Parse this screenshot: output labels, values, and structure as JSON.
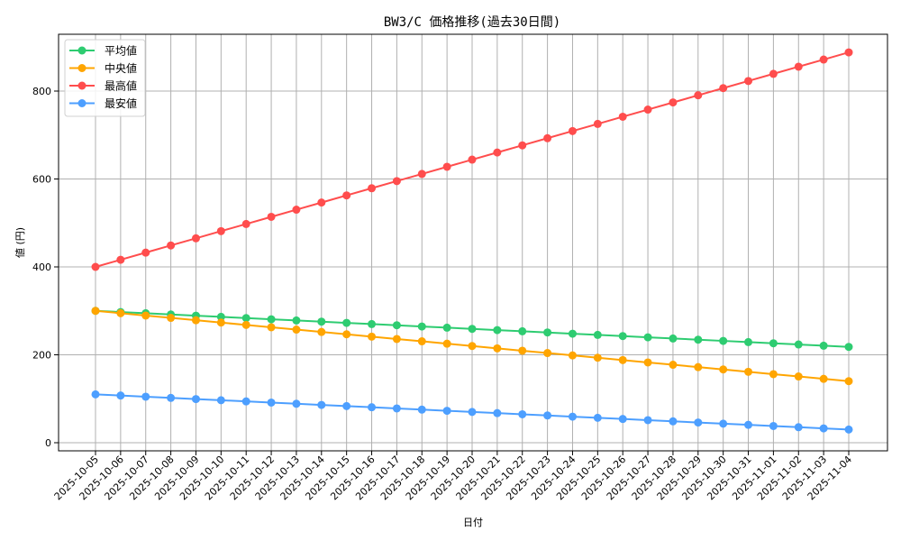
{
  "chart_data": {
    "type": "line",
    "title": "BW3/C 価格推移(過去30日間)",
    "xlabel": "日付",
    "ylabel": "値 (円)",
    "ylim": [
      -20,
      925
    ],
    "yticks": [
      0,
      200,
      400,
      600,
      800
    ],
    "grid": true,
    "legend_position": "upper left",
    "x": [
      "2025-10-05",
      "2025-10-06",
      "2025-10-07",
      "2025-10-08",
      "2025-10-09",
      "2025-10-10",
      "2025-10-11",
      "2025-10-12",
      "2025-10-13",
      "2025-10-14",
      "2025-10-15",
      "2025-10-16",
      "2025-10-17",
      "2025-10-18",
      "2025-10-19",
      "2025-10-20",
      "2025-10-21",
      "2025-10-22",
      "2025-10-23",
      "2025-10-24",
      "2025-10-25",
      "2025-10-26",
      "2025-10-27",
      "2025-10-28",
      "2025-10-29",
      "2025-10-30",
      "2025-10-31",
      "2025-11-01",
      "2025-11-02",
      "2025-11-03",
      "2025-11-04"
    ],
    "series": [
      {
        "name": "平均値",
        "color": "#2ecc71",
        "start": 300,
        "end": 218
      },
      {
        "name": "中央値",
        "color": "#ffa500",
        "start": 300,
        "end": 140
      },
      {
        "name": "最高値",
        "color": "#ff4d4d",
        "start": 400,
        "end": 888
      },
      {
        "name": "最安値",
        "color": "#4d9fff",
        "start": 110,
        "end": 30
      }
    ]
  }
}
